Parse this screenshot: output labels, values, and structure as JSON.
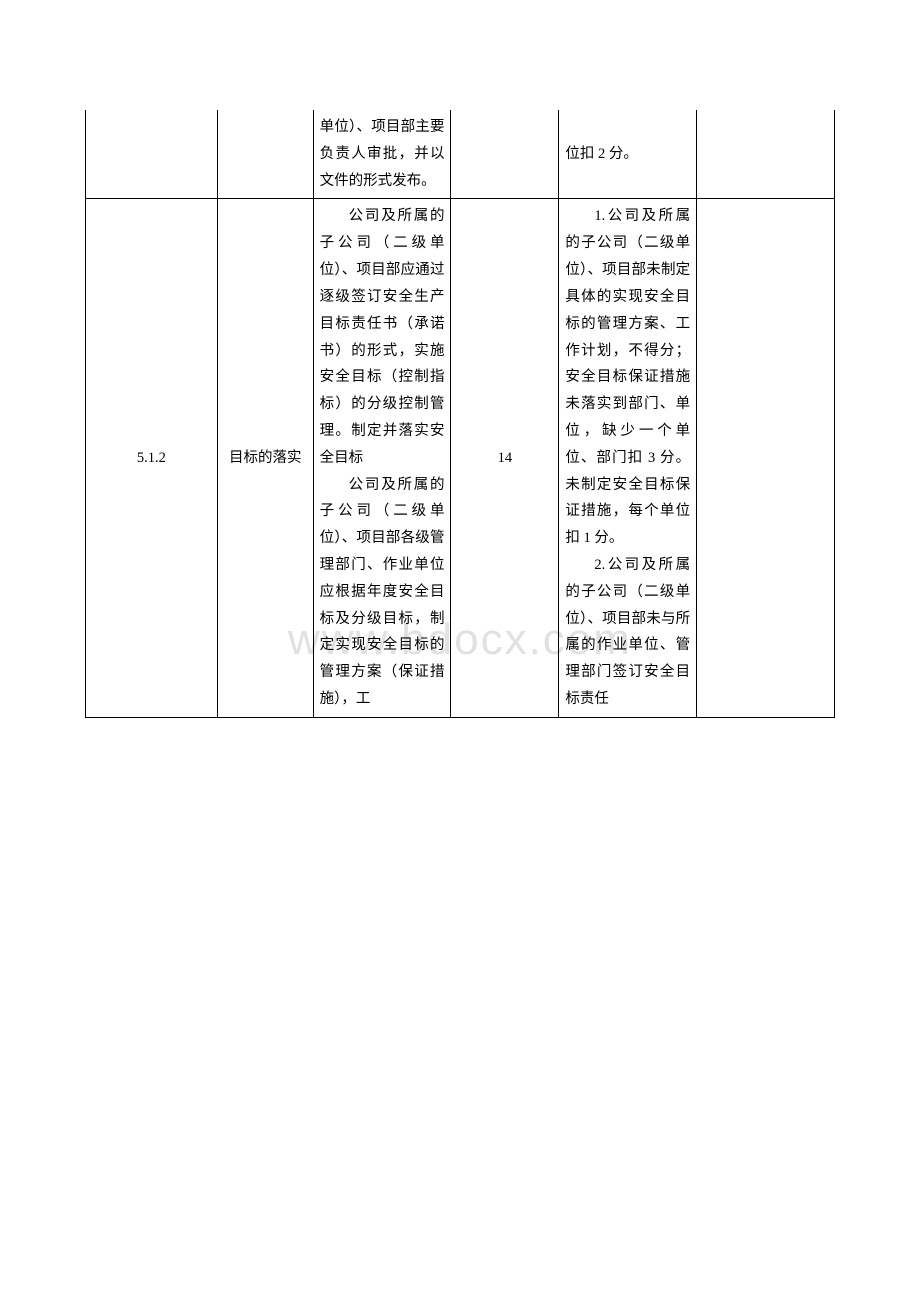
{
  "watermark": "www.bdocx.com",
  "row1": {
    "col3": "单位）、项目部主要负责人审批，并以文件的形式发布。",
    "col5": "位扣 2 分。"
  },
  "row2": {
    "col1": "5.1.2",
    "col2": "目标的落实",
    "col3_p1": "公司及所属的子公司（二级单位）、项目部应通过逐级签订安全生产目标责任书（承诺书）的形式，实施安全目标（控制指标）的分级控制管理。制定并落实安全目标",
    "col3_p2": "公司及所属的子公司（二级单位）、项目部各级管理部门、作业单位应根据年度安全目标及分级目标，制定实现安全目标的管理方案（保证措施），工",
    "col4": "14",
    "col5_p1": "1.公司及所属的子公司（二级单位）、项目部未制定具体的实现安全目标的管理方案、工作计划，不得分；安全目标保证措施未落实到部门、单位，缺少一个单位、部门扣 3 分。未制定安全目标保证措施，每个单位扣 1 分。",
    "col5_p2": "2.公司及所属的子公司（二级单位）、项目部未与所属的作业单位、管理部门签订安全目标责任"
  }
}
